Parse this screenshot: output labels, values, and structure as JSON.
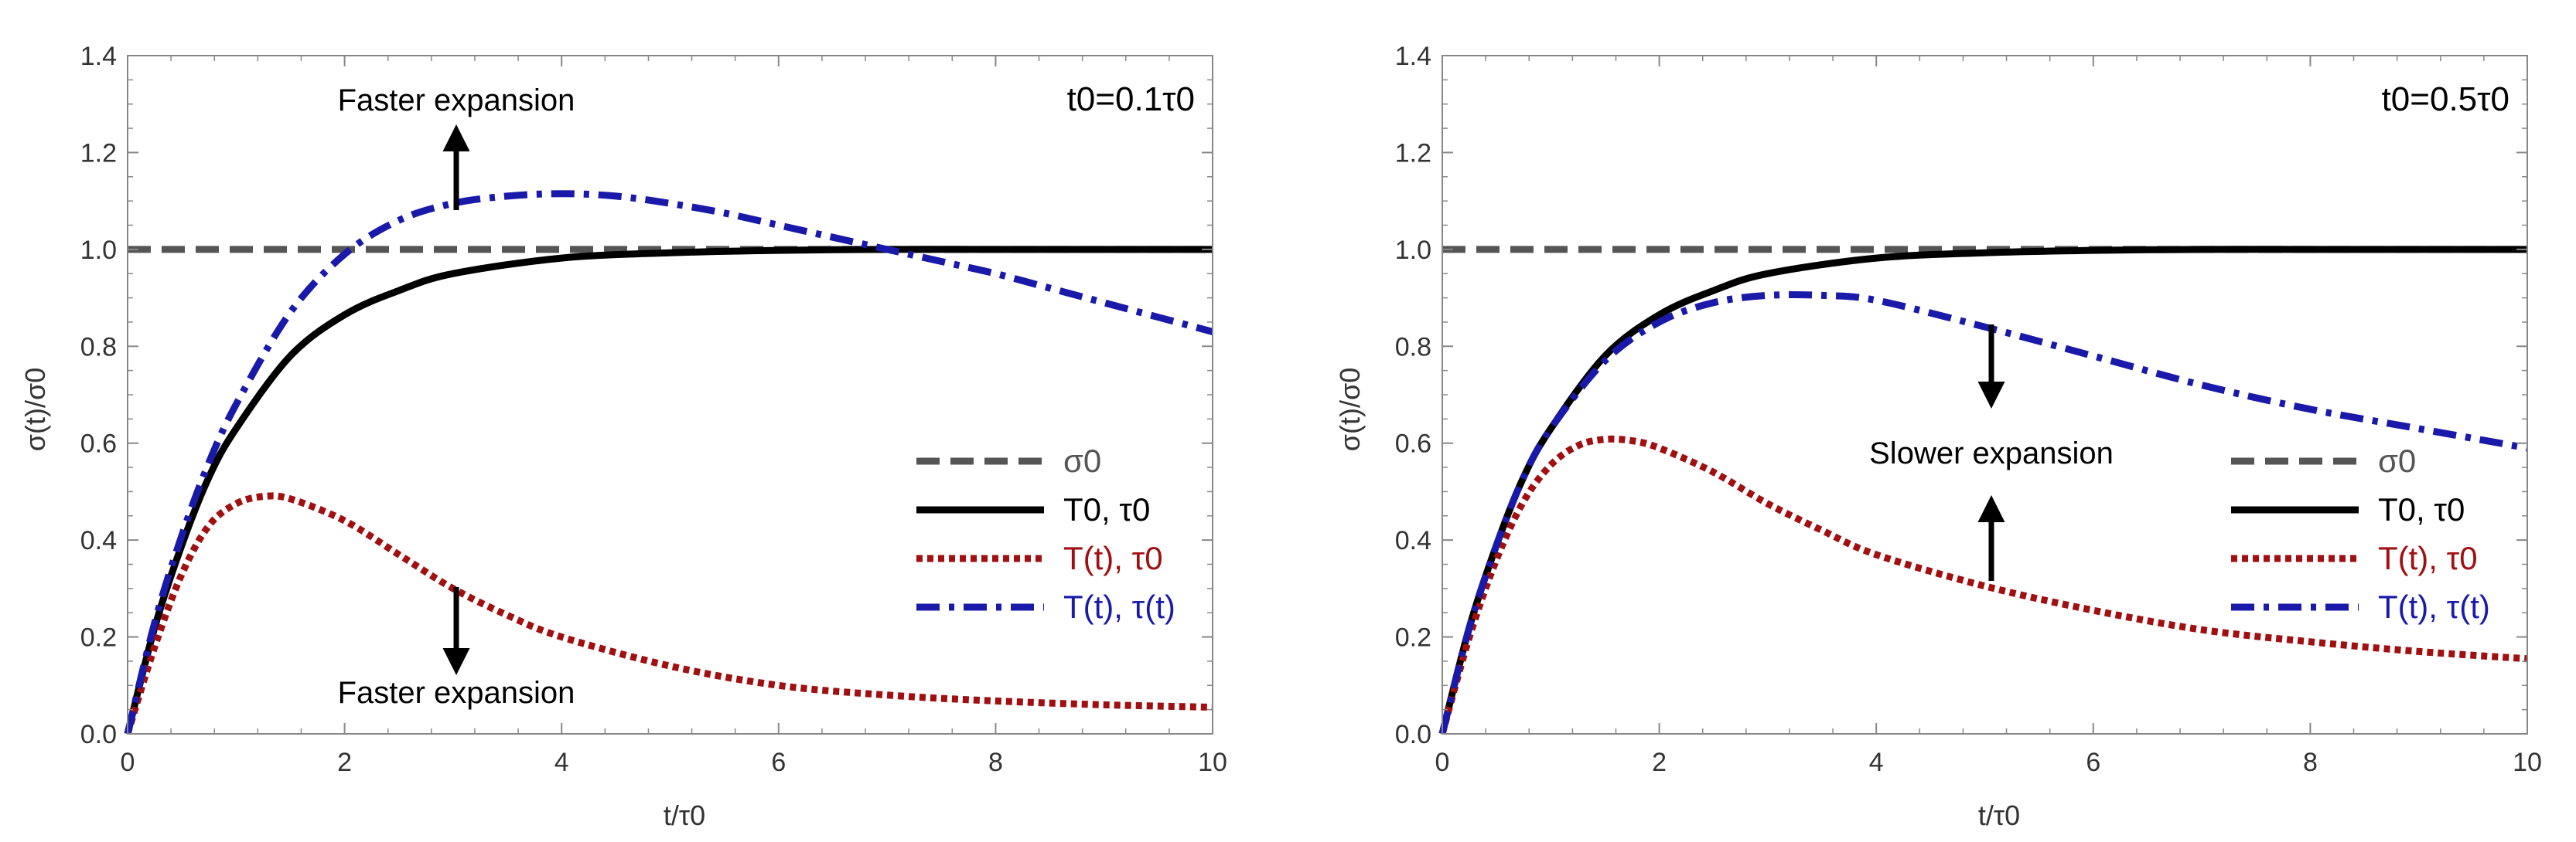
{
  "colors": {
    "sigma0": "#555555",
    "T0_tau0": "#000000",
    "Tt_tau0": "#a01010",
    "Tt_taut": "#1a1aaa",
    "frame": "#888888",
    "text": "#333333"
  },
  "chart_data": [
    {
      "type": "line",
      "title": "",
      "param_label": "t0=0.1τ0",
      "xlabel": "t/τ0",
      "ylabel": "σ(t)/σ0",
      "xlim": [
        0,
        10
      ],
      "ylim": [
        0,
        1.4
      ],
      "xticks": [
        "0",
        "2",
        "4",
        "6",
        "8",
        "10"
      ],
      "yticks": [
        "0.0",
        "0.2",
        "0.4",
        "0.6",
        "0.8",
        "1.0",
        "1.2",
        "1.4"
      ],
      "legend": [
        "σ0",
        "T0, τ0",
        "T(t), τ0",
        "T(t), τ(t)"
      ],
      "series": [
        {
          "name": "σ0",
          "style": "dashed",
          "x": [
            0,
            10
          ],
          "y": [
            1.0,
            1.0
          ]
        },
        {
          "name": "T0, τ0",
          "style": "solid",
          "x": [
            0,
            0.25,
            0.5,
            0.75,
            1,
            1.5,
            2,
            2.5,
            3,
            4,
            5,
            6,
            7,
            8,
            9,
            10
          ],
          "y": [
            0,
            0.22,
            0.39,
            0.53,
            0.63,
            0.78,
            0.865,
            0.915,
            0.95,
            0.982,
            0.993,
            0.998,
            1.0,
            1.0,
            1.0,
            1.0
          ]
        },
        {
          "name": "T(t), τ0",
          "style": "dotted",
          "x": [
            0,
            0.25,
            0.5,
            0.75,
            1,
            1.25,
            1.5,
            2,
            2.5,
            3,
            3.5,
            4,
            5,
            6,
            7,
            8,
            9,
            10
          ],
          "y": [
            0,
            0.18,
            0.33,
            0.43,
            0.475,
            0.49,
            0.485,
            0.44,
            0.37,
            0.3,
            0.245,
            0.2,
            0.14,
            0.1,
            0.08,
            0.068,
            0.06,
            0.055
          ]
        },
        {
          "name": "T(t), τ(t)",
          "style": "dashdot",
          "x": [
            0,
            0.25,
            0.5,
            0.75,
            1,
            1.5,
            2,
            2.5,
            3,
            3.5,
            4,
            4.5,
            5,
            5.5,
            6,
            6.5,
            7,
            7.5,
            8,
            8.5,
            9,
            9.5,
            10
          ],
          "y": [
            0,
            0.23,
            0.41,
            0.56,
            0.68,
            0.87,
            0.99,
            1.06,
            1.095,
            1.11,
            1.115,
            1.11,
            1.095,
            1.075,
            1.05,
            1.025,
            1.0,
            0.975,
            0.95,
            0.92,
            0.89,
            0.86,
            0.83
          ]
        }
      ],
      "annotations": [
        "Faster expansion",
        "Faster expansion"
      ]
    },
    {
      "type": "line",
      "title": "",
      "param_label": "t0=0.5τ0",
      "xlabel": "t/τ0",
      "ylabel": "σ(t)/σ0",
      "xlim": [
        0,
        10
      ],
      "ylim": [
        0,
        1.4
      ],
      "xticks": [
        "0",
        "2",
        "4",
        "6",
        "8",
        "10"
      ],
      "yticks": [
        "0.0",
        "0.2",
        "0.4",
        "0.6",
        "0.8",
        "1.0",
        "1.2",
        "1.4"
      ],
      "legend": [
        "σ0",
        "T0, τ0",
        "T(t), τ0",
        "T(t), τ(t)"
      ],
      "series": [
        {
          "name": "σ0",
          "style": "dashed",
          "x": [
            0,
            10
          ],
          "y": [
            1.0,
            1.0
          ]
        },
        {
          "name": "T0, τ0",
          "style": "solid",
          "x": [
            0,
            0.25,
            0.5,
            0.75,
            1,
            1.5,
            2,
            2.5,
            3,
            4,
            5,
            6,
            7,
            8,
            9,
            10
          ],
          "y": [
            0,
            0.22,
            0.39,
            0.53,
            0.63,
            0.78,
            0.865,
            0.915,
            0.95,
            0.982,
            0.993,
            0.998,
            1.0,
            1.0,
            1.0,
            1.0
          ]
        },
        {
          "name": "T(t), τ0",
          "style": "dotted",
          "x": [
            0,
            0.25,
            0.5,
            0.75,
            1,
            1.25,
            1.5,
            1.75,
            2,
            2.5,
            3,
            3.5,
            4,
            5,
            6,
            7,
            8,
            9,
            10
          ],
          "y": [
            0,
            0.2,
            0.36,
            0.48,
            0.555,
            0.595,
            0.608,
            0.605,
            0.59,
            0.54,
            0.475,
            0.42,
            0.37,
            0.305,
            0.255,
            0.215,
            0.19,
            0.17,
            0.155
          ]
        },
        {
          "name": "T(t), τ(t)",
          "style": "dashdot",
          "x": [
            0,
            0.25,
            0.5,
            0.75,
            1,
            1.5,
            2,
            2.5,
            3,
            3.5,
            4,
            5,
            6,
            7,
            8,
            9,
            10
          ],
          "y": [
            0,
            0.22,
            0.39,
            0.53,
            0.63,
            0.77,
            0.85,
            0.89,
            0.905,
            0.905,
            0.895,
            0.84,
            0.78,
            0.72,
            0.67,
            0.63,
            0.59
          ]
        }
      ],
      "annotations": [
        "Slower expansion"
      ]
    }
  ]
}
